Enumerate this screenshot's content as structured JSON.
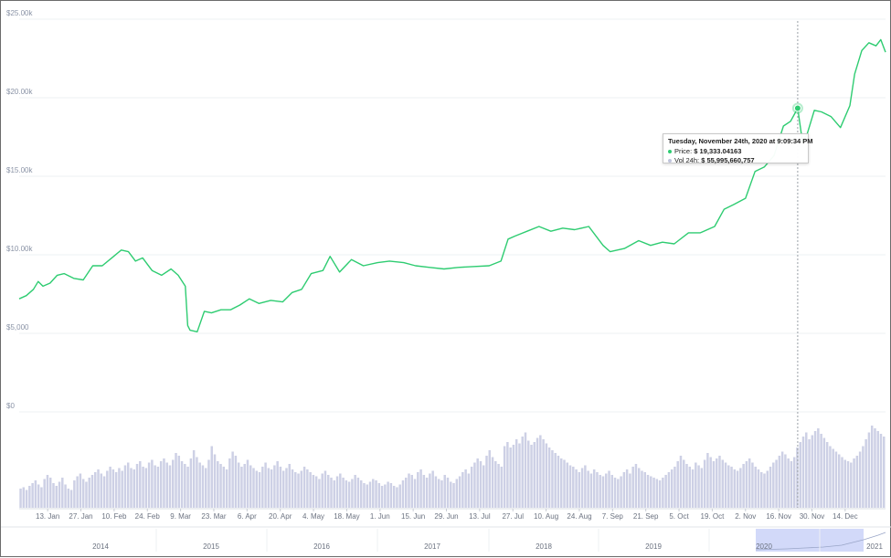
{
  "chart_data": {
    "type": "line",
    "series": [
      {
        "x": [
          "2020-01-01",
          "2020-01-04",
          "2020-01-07",
          "2020-01-09",
          "2020-01-11",
          "2020-01-14",
          "2020-01-17",
          "2020-01-20",
          "2020-01-24",
          "2020-01-28",
          "2020-02-01",
          "2020-02-05",
          "2020-02-09",
          "2020-02-13",
          "2020-02-16",
          "2020-02-19",
          "2020-02-22",
          "2020-02-26",
          "2020-03-01",
          "2020-03-05",
          "2020-03-08",
          "2020-03-11",
          "2020-03-12",
          "2020-03-13",
          "2020-03-16",
          "2020-03-19",
          "2020-03-22",
          "2020-03-26",
          "2020-03-30",
          "2020-04-03",
          "2020-04-07",
          "2020-04-11",
          "2020-04-16",
          "2020-04-21",
          "2020-04-25",
          "2020-04-29",
          "2020-05-03",
          "2020-05-08",
          "2020-05-11",
          "2020-05-15",
          "2020-05-20",
          "2020-05-25",
          "2020-05-31",
          "2020-06-05",
          "2020-06-11",
          "2020-06-16",
          "2020-06-22",
          "2020-06-28",
          "2020-07-04",
          "2020-07-10",
          "2020-07-17",
          "2020-07-22",
          "2020-07-25",
          "2020-07-28",
          "2020-08-02",
          "2020-08-07",
          "2020-08-12",
          "2020-08-17",
          "2020-08-22",
          "2020-08-28",
          "2020-09-03",
          "2020-09-06",
          "2020-09-12",
          "2020-09-18",
          "2020-09-23",
          "2020-09-28",
          "2020-10-03",
          "2020-10-09",
          "2020-10-14",
          "2020-10-20",
          "2020-10-24",
          "2020-10-28",
          "2020-11-02",
          "2020-11-06",
          "2020-11-10",
          "2020-11-14",
          "2020-11-18",
          "2020-11-21",
          "2020-11-24",
          "2020-11-26",
          "2020-11-28",
          "2020-12-01",
          "2020-12-04",
          "2020-12-08",
          "2020-12-12",
          "2020-12-16",
          "2020-12-18",
          "2020-12-21",
          "2020-12-24",
          "2020-12-27",
          "2020-12-29",
          "2020-12-31"
        ],
        "y": [
          7200,
          7400,
          7800,
          8300,
          8000,
          8200,
          8700,
          8800,
          8500,
          8400,
          9300,
          9300,
          9800,
          10300,
          10200,
          9600,
          9800,
          9000,
          8700,
          9100,
          8700,
          8000,
          5500,
          5200,
          5100,
          6400,
          6300,
          6500,
          6500,
          6800,
          7200,
          6900,
          7100,
          7000,
          7600,
          7800,
          8800,
          9000,
          9900,
          8900,
          9700,
          9300,
          9500,
          9600,
          9500,
          9300,
          9200,
          9100,
          9200,
          9250,
          9300,
          9600,
          11000,
          11200,
          11500,
          11800,
          11500,
          11700,
          11600,
          11800,
          10600,
          10200,
          10400,
          10900,
          10600,
          10800,
          10700,
          11400,
          11400,
          11800,
          12900,
          13200,
          13600,
          15300,
          15600,
          16300,
          18200,
          18500,
          19333,
          17200,
          17700,
          19200,
          19100,
          18800,
          18100,
          19500,
          21500,
          23000,
          23500,
          23300,
          23700,
          22900
        ],
        "color": "#2ecc71"
      }
    ],
    "volume": [
      14,
      15,
      13,
      16,
      18,
      20,
      17,
      15,
      21,
      24,
      22,
      18,
      16,
      19,
      22,
      17,
      14,
      13,
      20,
      23,
      25,
      21,
      19,
      22,
      24,
      26,
      28,
      25,
      23,
      27,
      30,
      28,
      26,
      29,
      27,
      31,
      33,
      29,
      28,
      32,
      34,
      30,
      29,
      33,
      35,
      31,
      30,
      34,
      36,
      33,
      31,
      35,
      40,
      38,
      34,
      32,
      30,
      36,
      42,
      37,
      33,
      31,
      29,
      35,
      45,
      39,
      34,
      32,
      30,
      28,
      36,
      41,
      38,
      33,
      30,
      32,
      35,
      31,
      29,
      27,
      26,
      30,
      33,
      29,
      28,
      31,
      34,
      30,
      27,
      29,
      32,
      28,
      26,
      25,
      27,
      30,
      28,
      26,
      24,
      23,
      21,
      25,
      27,
      24,
      22,
      20,
      23,
      25,
      22,
      20,
      19,
      21,
      24,
      22,
      20,
      18,
      17,
      19,
      21,
      20,
      18,
      16,
      17,
      19,
      18,
      16,
      15,
      17,
      20,
      22,
      25,
      24,
      21,
      26,
      28,
      24,
      22,
      25,
      27,
      23,
      21,
      20,
      24,
      22,
      19,
      18,
      21,
      23,
      26,
      28,
      25,
      30,
      33,
      36,
      34,
      31,
      38,
      42,
      37,
      34,
      32,
      30,
      45,
      48,
      44,
      46,
      50,
      47,
      52,
      55,
      49,
      46,
      48,
      51,
      53,
      50,
      47,
      44,
      42,
      40,
      38,
      36,
      35,
      33,
      31,
      30,
      28,
      26,
      29,
      31,
      27,
      25,
      28,
      26,
      24,
      23,
      25,
      27,
      24,
      22,
      21,
      23,
      26,
      28,
      25,
      30,
      32,
      29,
      27,
      26,
      24,
      23,
      22,
      21,
      20,
      22,
      24,
      26,
      28,
      30,
      34,
      38,
      35,
      32,
      30,
      28,
      33,
      31,
      29,
      35,
      40,
      37,
      34,
      36,
      38,
      35,
      33,
      31,
      30,
      28,
      27,
      29,
      32,
      34,
      36,
      33,
      30,
      28,
      26,
      25,
      27,
      30,
      33,
      35,
      38,
      41,
      39,
      36,
      34,
      37,
      44,
      48,
      52,
      55,
      50,
      53,
      56,
      58,
      54,
      51,
      48,
      45,
      43,
      41,
      39,
      37,
      35,
      34,
      33,
      36,
      38,
      41,
      45,
      50,
      55,
      60,
      58,
      56,
      54,
      52
    ],
    "ylim": [
      0,
      25000
    ],
    "yticks": [
      0,
      5000,
      10000,
      15000,
      20000,
      25000
    ],
    "ytick_labels": [
      "$0",
      "$5,000",
      "$10.00k",
      "$15.00k",
      "$20.00k",
      "$25.00k"
    ],
    "xtick_dates": [
      "2020-01-13",
      "2020-01-27",
      "2020-02-10",
      "2020-02-24",
      "2020-03-09",
      "2020-03-23",
      "2020-04-06",
      "2020-04-20",
      "2020-05-04",
      "2020-05-18",
      "2020-06-01",
      "2020-06-15",
      "2020-06-29",
      "2020-07-13",
      "2020-07-27",
      "2020-08-10",
      "2020-08-24",
      "2020-09-07",
      "2020-09-21",
      "2020-10-05",
      "2020-10-19",
      "2020-11-02",
      "2020-11-16",
      "2020-11-30",
      "2020-12-14"
    ],
    "xtick_labels": [
      "13. Jan",
      "27. Jan",
      "10. Feb",
      "24. Feb",
      "9. Mar",
      "23. Mar",
      "6. Apr",
      "20. Apr",
      "4. May",
      "18. May",
      "1. Jun",
      "15. Jun",
      "29. Jun",
      "13. Jul",
      "27. Jul",
      "10. Aug",
      "24. Aug",
      "7. Sep",
      "21. Sep",
      "5. Oct",
      "19. Oct",
      "2. Nov",
      "16. Nov",
      "30. Nov",
      "14. Dec"
    ],
    "navigator_labels": [
      "2014",
      "2015",
      "2016",
      "2017",
      "2018",
      "2019",
      "2020",
      "2021"
    ],
    "grid": true,
    "highlight": {
      "x": "2020-11-24",
      "y": 19333.04163
    },
    "tooltip": {
      "title": "Tuesday, November 24th, 2020 at 9:09:34 PM",
      "price_label": "Price:",
      "price_value": "$ 19,333.04163",
      "volume_label": "Vol 24h:",
      "volume_value": "$ 55,995,660,757"
    },
    "colors": {
      "line": "#2ecc71",
      "volume_bar": "#cdd0e5",
      "navigator_window": "#c7cff7",
      "grid": "#eef0f3",
      "tooltip_price_dot": "#2ecc71",
      "tooltip_vol_dot": "#bfc4dc"
    }
  }
}
